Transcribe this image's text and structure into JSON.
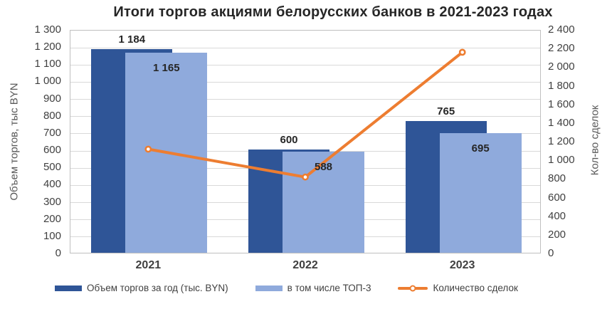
{
  "chart_data": {
    "type": "combo-bar-line",
    "title": "Итоги торгов акциями белорусских банков в 2021-2023 годах",
    "categories": [
      "2021",
      "2022",
      "2023"
    ],
    "series": [
      {
        "name": "Объем торгов за год (тыс. BYN)",
        "chart_type": "bar",
        "axis": "left",
        "color": "#2F5597",
        "values": [
          1184,
          600,
          765
        ],
        "data_labels": [
          "1 184",
          "600",
          "765"
        ],
        "data_label_position": "outside-end"
      },
      {
        "name": "в том числе ТОП-3",
        "chart_type": "bar",
        "axis": "left",
        "color": "#8FAADC",
        "values": [
          1165,
          588,
          695
        ],
        "data_labels": [
          "1 165",
          "588",
          "695"
        ],
        "data_label_position": "inside-end"
      },
      {
        "name": "Количество сделок",
        "chart_type": "line",
        "axis": "right",
        "color": "#ED7D31",
        "marker": "circle",
        "marker_fill": "#FFFFFF",
        "values": [
          1120,
          820,
          2160
        ]
      }
    ],
    "left_axis": {
      "title": "Объем торгов, тыс BYN",
      "min": 0,
      "max": 1300,
      "step": 100,
      "tick_labels": [
        "1 300",
        "1 200",
        "1 100",
        "1 000",
        "900",
        "800",
        "700",
        "600",
        "500",
        "400",
        "300",
        "200",
        "100",
        "0"
      ]
    },
    "right_axis": {
      "title": "Кол-во сделок",
      "min": 0,
      "max": 2400,
      "step": 200,
      "tick_labels": [
        "2 400",
        "2 200",
        "2 000",
        "1 800",
        "1 600",
        "1 400",
        "1 200",
        "1 000",
        "800",
        "600",
        "400",
        "200",
        "0"
      ]
    },
    "gridlines": "horizontal",
    "legend_position": "bottom"
  },
  "colors": {
    "background": "#FFFFFF",
    "grid": "#D9D9D9",
    "plot_border": "#BFBFBF",
    "title_text": "#262626",
    "tick_text": "#404040",
    "axis_title_text": "#595959",
    "data_label_text": "#262626",
    "category_text": "#404040",
    "bar_dark": "#2F5597",
    "bar_light": "#8FAADC",
    "line_orange": "#ED7D31"
  }
}
